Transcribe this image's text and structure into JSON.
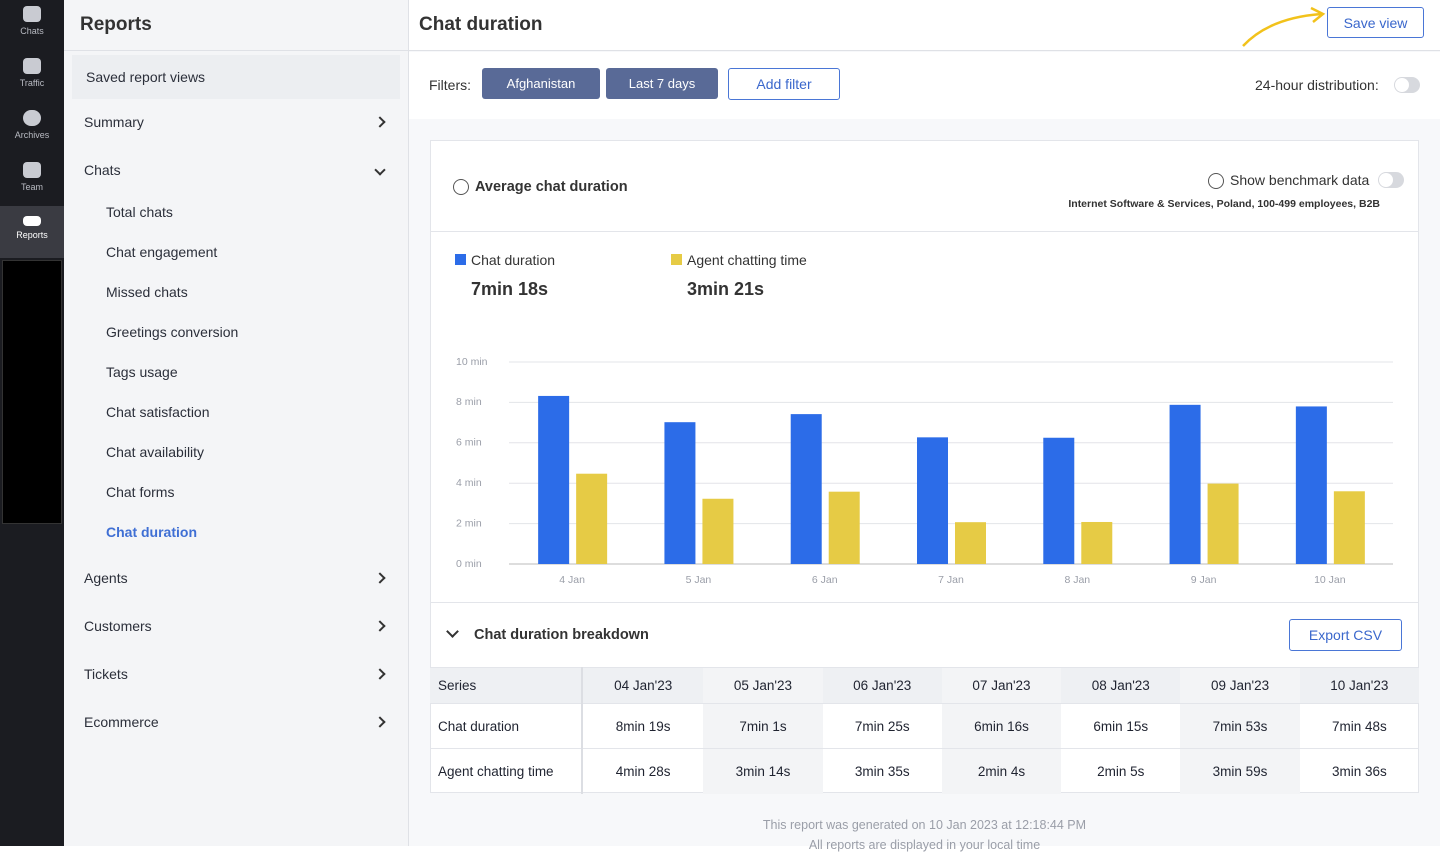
{
  "nav": [
    "Chats",
    "Traffic",
    "Archives",
    "Team",
    "Reports"
  ],
  "sidebar": {
    "title": "Reports",
    "saved": "Saved report views",
    "sections": [
      "Summary",
      "Chats",
      "Agents",
      "Customers",
      "Tickets",
      "Ecommerce"
    ],
    "chats_items": [
      "Total chats",
      "Chat engagement",
      "Missed chats",
      "Greetings conversion",
      "Tags usage",
      "Chat satisfaction",
      "Chat availability",
      "Chat forms",
      "Chat duration"
    ]
  },
  "header": {
    "title": "Chat duration",
    "save": "Save view"
  },
  "filters": {
    "label": "Filters:",
    "chips": [
      "Afghanistan",
      "Last 7 days"
    ],
    "add": "Add filter",
    "distribution": "24-hour distribution:"
  },
  "card": {
    "title": "Average chat duration",
    "benchmark_toggle": "Show benchmark data",
    "benchmark": "Internet Software & Services, Poland, 100-499 employees, B2B",
    "totals": [
      "7min 18s",
      "3min 21s"
    ]
  },
  "chart_data": {
    "type": "bar",
    "categories": [
      "4 Jan",
      "5 Jan",
      "6 Jan",
      "7 Jan",
      "8 Jan",
      "9 Jan",
      "10 Jan"
    ],
    "series": [
      {
        "name": "Chat duration",
        "color": "#2c6ce8",
        "values": [
          8.32,
          7.02,
          7.42,
          6.27,
          6.25,
          7.88,
          7.8
        ]
      },
      {
        "name": "Agent chatting time",
        "color": "#e6cb45",
        "values": [
          4.47,
          3.23,
          3.58,
          2.07,
          2.08,
          3.98,
          3.6
        ]
      }
    ],
    "ylim": [
      0,
      10
    ],
    "yticks": [
      {
        "value": 0,
        "label": "0 min"
      },
      {
        "value": 2,
        "label": "2 min"
      },
      {
        "value": 4,
        "label": "4 min"
      },
      {
        "value": 6,
        "label": "6 min"
      },
      {
        "value": 8,
        "label": "8 min"
      },
      {
        "value": 10,
        "label": "10 min"
      }
    ],
    "grid": true
  },
  "breakdown": {
    "title": "Chat duration breakdown",
    "export": "Export CSV"
  },
  "table": {
    "header": [
      "Series",
      "04 Jan'23",
      "05 Jan'23",
      "06 Jan'23",
      "07 Jan'23",
      "08 Jan'23",
      "09 Jan'23",
      "10 Jan'23"
    ],
    "rows": [
      [
        "Chat duration",
        "8min 19s",
        "7min 1s",
        "7min 25s",
        "6min 16s",
        "6min 15s",
        "7min 53s",
        "7min 48s"
      ],
      [
        "Agent chatting time",
        "4min 28s",
        "3min 14s",
        "3min 35s",
        "2min 4s",
        "2min 5s",
        "3min 59s",
        "3min 36s"
      ]
    ]
  },
  "footer": [
    "This report was generated on 10 Jan 2023 at 12:18:44 PM",
    "All reports are displayed in your local time"
  ]
}
